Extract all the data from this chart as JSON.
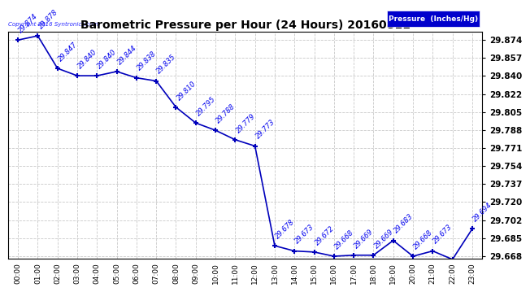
{
  "title": "Barometric Pressure per Hour (24 Hours) 20160811",
  "legend_label": "Pressure  (Inches/Hg)",
  "copyright_text": "Copyright 2016 Syntronics.com",
  "hours": [
    0,
    1,
    2,
    3,
    4,
    5,
    6,
    7,
    8,
    9,
    10,
    11,
    12,
    13,
    14,
    15,
    16,
    17,
    18,
    19,
    20,
    21,
    22,
    23
  ],
  "hour_labels": [
    "00:00",
    "01:00",
    "02:00",
    "03:00",
    "04:00",
    "05:00",
    "06:00",
    "07:00",
    "08:00",
    "09:00",
    "10:00",
    "11:00",
    "12:00",
    "13:00",
    "14:00",
    "15:00",
    "16:00",
    "17:00",
    "18:00",
    "19:00",
    "20:00",
    "21:00",
    "22:00",
    "23:00"
  ],
  "values": [
    29.874,
    29.878,
    29.847,
    29.84,
    29.84,
    29.844,
    29.838,
    29.835,
    29.81,
    29.795,
    29.788,
    29.779,
    29.773,
    29.678,
    29.673,
    29.672,
    29.668,
    29.669,
    29.669,
    29.683,
    29.668,
    29.673,
    29.665,
    29.694
  ],
  "ylim_min": 29.6655,
  "ylim_max": 29.882,
  "yticks": [
    29.668,
    29.685,
    29.702,
    29.72,
    29.737,
    29.754,
    29.771,
    29.788,
    29.805,
    29.822,
    29.84,
    29.857,
    29.874
  ],
  "line_color": "#0000bb",
  "marker_color": "#0000bb",
  "label_color": "#0000ee",
  "background_color": "#ffffff",
  "grid_color": "#bbbbbb",
  "title_fontsize": 10,
  "legend_bg_color": "#0000cc",
  "legend_text_color": "#ffffff"
}
